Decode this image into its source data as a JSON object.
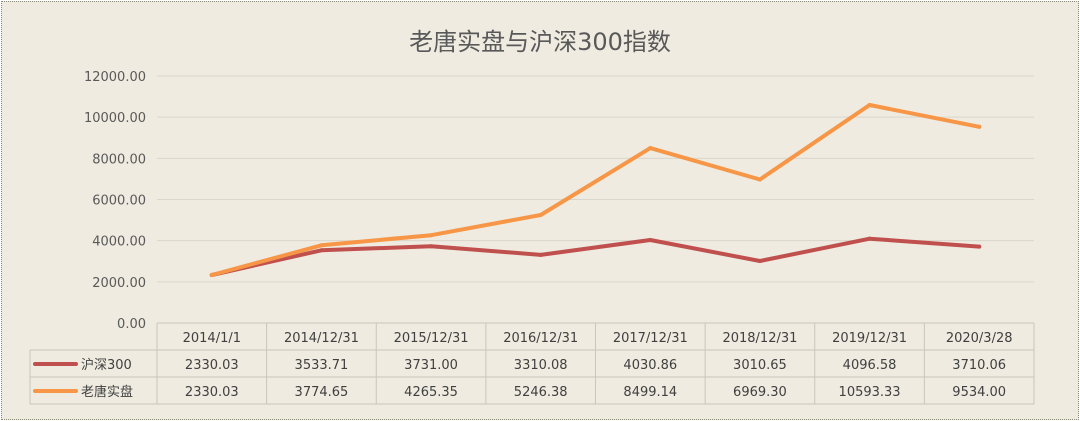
{
  "chart_data": {
    "type": "line",
    "title": "老唐实盘与沪深300指数",
    "categories": [
      "2014/1/1",
      "2014/12/31",
      "2015/12/31",
      "2016/12/31",
      "2017/12/31",
      "2018/12/31",
      "2019/12/31",
      "2020/3/28"
    ],
    "ylim": [
      0,
      12000
    ],
    "yticks": [
      "0.00",
      "2000.00",
      "4000.00",
      "6000.00",
      "8000.00",
      "10000.00",
      "12000.00"
    ],
    "grid": true,
    "legend_placement": "data-table",
    "series": [
      {
        "name": "沪深300",
        "color": "#c0504d",
        "values": [
          2330.03,
          3533.71,
          3731.0,
          3310.08,
          4030.86,
          3010.65,
          4096.58,
          3710.06
        ],
        "labels": [
          "2330.03",
          "3533.71",
          "3731.00",
          "3310.08",
          "4030.86",
          "3010.65",
          "4096.58",
          "3710.06"
        ]
      },
      {
        "name": "老唐实盘",
        "color": "#f79646",
        "values": [
          2330.03,
          3774.65,
          4265.35,
          5246.38,
          8499.14,
          6969.3,
          10593.33,
          9534.0
        ],
        "labels": [
          "2330.03",
          "3774.65",
          "4265.35",
          "5246.38",
          "8499.14",
          "6969.30",
          "10593.33",
          "9534.00"
        ]
      }
    ]
  }
}
